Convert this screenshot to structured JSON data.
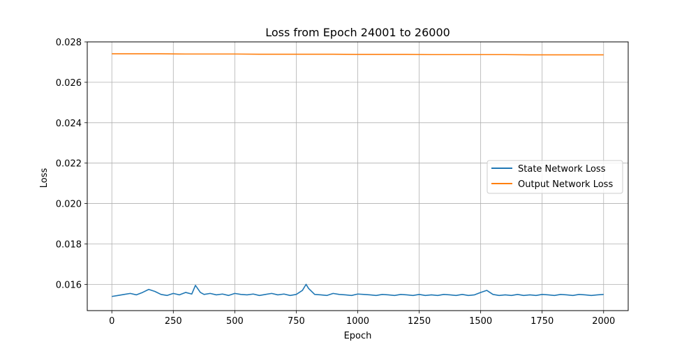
{
  "chart_data": {
    "type": "line",
    "title": "Loss from Epoch 24001 to 26000",
    "xlabel": "Epoch",
    "ylabel": "Loss",
    "xlim": [
      -100,
      2100
    ],
    "ylim": [
      0.0147,
      0.028
    ],
    "xticks": [
      0,
      250,
      500,
      750,
      1000,
      1250,
      1500,
      1750,
      2000
    ],
    "yticks": [
      0.016,
      0.018,
      0.02,
      0.022,
      0.024,
      0.026,
      0.028
    ],
    "ytick_labels": [
      "0.016",
      "0.018",
      "0.020",
      "0.022",
      "0.024",
      "0.026",
      "0.028"
    ],
    "grid": true,
    "legend_position": "center-right",
    "series": [
      {
        "name": "State Network Loss",
        "color": "#1f77b4",
        "x": [
          0,
          25,
          50,
          75,
          100,
          125,
          150,
          175,
          200,
          225,
          250,
          275,
          300,
          325,
          340,
          360,
          375,
          400,
          425,
          450,
          475,
          500,
          525,
          550,
          575,
          600,
          625,
          650,
          675,
          700,
          725,
          750,
          775,
          790,
          800,
          825,
          850,
          875,
          900,
          925,
          950,
          975,
          1000,
          1025,
          1050,
          1075,
          1100,
          1125,
          1150,
          1175,
          1200,
          1225,
          1250,
          1275,
          1300,
          1325,
          1350,
          1375,
          1400,
          1425,
          1450,
          1475,
          1500,
          1525,
          1550,
          1575,
          1600,
          1625,
          1650,
          1675,
          1700,
          1725,
          1750,
          1775,
          1800,
          1825,
          1850,
          1875,
          1900,
          1925,
          1950,
          1975,
          2000
        ],
        "values": [
          0.0154,
          0.01545,
          0.0155,
          0.01555,
          0.01548,
          0.0156,
          0.01575,
          0.01565,
          0.0155,
          0.01545,
          0.01555,
          0.01548,
          0.0156,
          0.01552,
          0.01595,
          0.0156,
          0.0155,
          0.01555,
          0.01548,
          0.01552,
          0.01545,
          0.01555,
          0.0155,
          0.01548,
          0.01552,
          0.01545,
          0.0155,
          0.01555,
          0.01548,
          0.01552,
          0.01545,
          0.0155,
          0.0157,
          0.016,
          0.0158,
          0.0155,
          0.01548,
          0.01545,
          0.01555,
          0.0155,
          0.01548,
          0.01545,
          0.01552,
          0.0155,
          0.01548,
          0.01545,
          0.0155,
          0.01548,
          0.01545,
          0.0155,
          0.01548,
          0.01545,
          0.0155,
          0.01545,
          0.01548,
          0.01545,
          0.0155,
          0.01548,
          0.01545,
          0.0155,
          0.01545,
          0.01548,
          0.0156,
          0.0157,
          0.0155,
          0.01545,
          0.01548,
          0.01545,
          0.0155,
          0.01545,
          0.01548,
          0.01545,
          0.0155,
          0.01548,
          0.01545,
          0.0155,
          0.01548,
          0.01545,
          0.0155,
          0.01548,
          0.01545,
          0.01548,
          0.0155
        ]
      },
      {
        "name": "Output Network Loss",
        "color": "#ff7f0e",
        "x": [
          0,
          100,
          200,
          300,
          400,
          500,
          600,
          700,
          800,
          900,
          1000,
          1100,
          1200,
          1300,
          1400,
          1500,
          1600,
          1700,
          1800,
          1900,
          2000
        ],
        "values": [
          0.02741,
          0.02741,
          0.02741,
          0.0274,
          0.0274,
          0.0274,
          0.02739,
          0.02739,
          0.02739,
          0.02739,
          0.02738,
          0.02738,
          0.02738,
          0.02737,
          0.02737,
          0.02737,
          0.02737,
          0.02736,
          0.02736,
          0.02736,
          0.02736
        ]
      }
    ]
  }
}
